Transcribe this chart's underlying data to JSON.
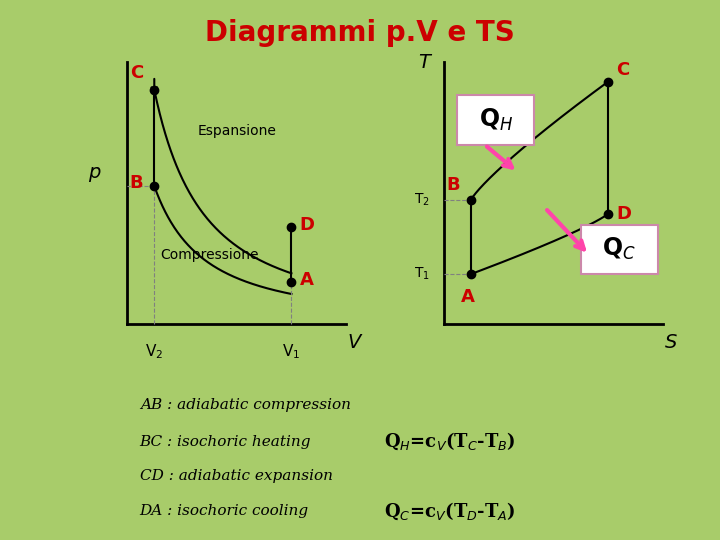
{
  "title": "Diagrammi p.V e TS",
  "title_color": "#cc0000",
  "title_fontsize": 20,
  "bg_outer": "#a8cc6a",
  "bg_inner": "#ffffff",
  "bg_text_box": "#ffff88",
  "text_lines": [
    "AB : adiabatic compression",
    "BC : isochoric heating",
    "CD : adiabatic expansion",
    "DA : isochoric cooling"
  ],
  "formula_QH": "Q$_{H}$=c$_{V}$(T$_{C}$-T$_{B}$)",
  "formula_QC": "Q$_{C}$=c$_{V}$(T$_{D}$-T$_{A}$)",
  "label_color": "#cc0000",
  "arrow_color": "#ff44aa",
  "line_color": "#000000",
  "dot_color": "#000000",
  "gamma": 1.4
}
